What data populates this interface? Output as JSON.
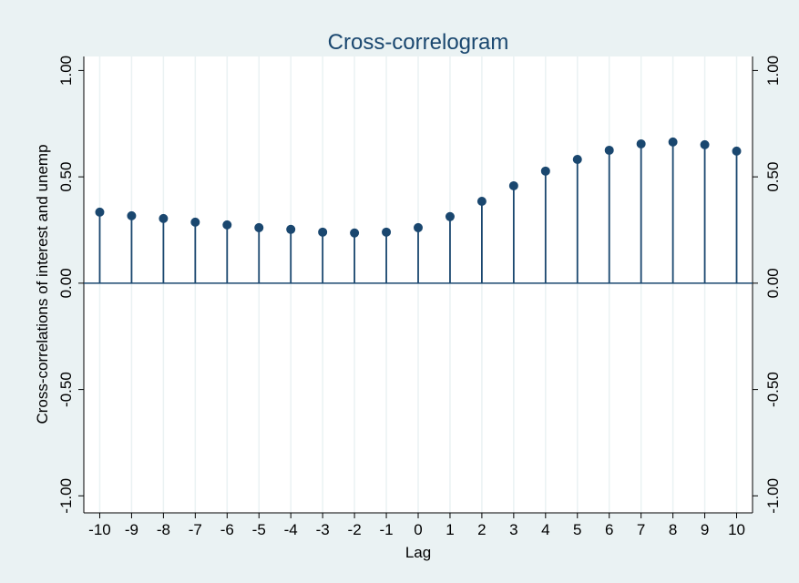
{
  "chart_data": {
    "type": "stem",
    "title": "Cross-correlogram",
    "xlabel": "Lag",
    "ylabel": "Cross-correlations of interest and unemp",
    "x": [
      -10,
      -9,
      -8,
      -7,
      -6,
      -5,
      -4,
      -3,
      -2,
      -1,
      0,
      1,
      2,
      3,
      4,
      5,
      6,
      7,
      8,
      9,
      10
    ],
    "values": [
      0.334,
      0.317,
      0.304,
      0.287,
      0.274,
      0.261,
      0.253,
      0.24,
      0.236,
      0.24,
      0.261,
      0.313,
      0.385,
      0.458,
      0.527,
      0.582,
      0.625,
      0.655,
      0.664,
      0.651,
      0.621
    ],
    "color": "#1a476f",
    "xlim": [
      -10.5,
      10.5
    ],
    "xticks": [
      -10,
      -9,
      -8,
      -7,
      -6,
      -5,
      -4,
      -3,
      -2,
      -1,
      0,
      1,
      2,
      3,
      4,
      5,
      6,
      7,
      8,
      9,
      10
    ],
    "ylim": [
      -1.08,
      1.066
    ],
    "yticks": [
      {
        "value": -1,
        "label": "-1.00"
      },
      {
        "value": -0.5,
        "label": "-0.50"
      },
      {
        "value": 0,
        "label": "0.00"
      },
      {
        "value": 0.5,
        "label": "0.50"
      },
      {
        "value": 1,
        "label": "1.00"
      }
    ],
    "grid": "x"
  }
}
